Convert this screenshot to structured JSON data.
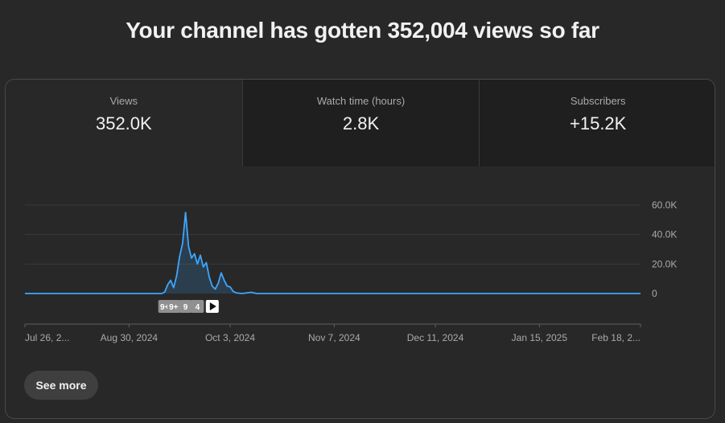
{
  "headline": "Your channel has gotten 352,004 views so far",
  "tabs": [
    {
      "label": "Views",
      "value": "352.0K"
    },
    {
      "label": "Watch time (hours)",
      "value": "2.8K"
    },
    {
      "label": "Subscribers",
      "value": "+15.2K"
    }
  ],
  "see_more_label": "See more",
  "markers": [
    {
      "label": "9+",
      "date": "2024-09-11"
    },
    {
      "label": "9+",
      "date": "2024-09-14"
    },
    {
      "label": "9",
      "date": "2024-09-18"
    },
    {
      "label": "4",
      "date": "2024-09-22"
    },
    {
      "label": "",
      "icon": "play-icon",
      "date": "2024-09-27"
    }
  ],
  "colors": {
    "line": "#3ea6ff",
    "background": "#282828",
    "tab_inactive": "#1f1f1f"
  },
  "chart_data": {
    "type": "area",
    "title": "",
    "xlabel": "",
    "ylabel": "",
    "x_range": [
      "2024-07-26",
      "2025-02-18"
    ],
    "ylim": [
      0,
      60000
    ],
    "y_ticks": [
      0,
      20000,
      40000,
      60000
    ],
    "y_tick_labels": [
      "0",
      "20.0K",
      "40.0K",
      "60.0K"
    ],
    "x_tick_labels": [
      "Jul 26, 2...",
      "Aug 30, 2024",
      "Oct 3, 2024",
      "Nov 7, 2024",
      "Dec 11, 2024",
      "Jan 15, 2025",
      "Feb 18, 2..."
    ],
    "x_tick_dates": [
      "2024-07-26",
      "2024-08-30",
      "2024-10-03",
      "2024-11-07",
      "2024-12-11",
      "2025-01-15",
      "2025-02-18"
    ],
    "grid": true,
    "series": [
      {
        "points": [
          [
            "2024-07-26",
            0
          ],
          [
            "2024-09-10",
            0
          ],
          [
            "2024-09-11",
            1000
          ],
          [
            "2024-09-12",
            6000
          ],
          [
            "2024-09-13",
            9000
          ],
          [
            "2024-09-14",
            4000
          ],
          [
            "2024-09-15",
            12000
          ],
          [
            "2024-09-16",
            25000
          ],
          [
            "2024-09-17",
            34000
          ],
          [
            "2024-09-18",
            55000
          ],
          [
            "2024-09-19",
            32000
          ],
          [
            "2024-09-20",
            24000
          ],
          [
            "2024-09-21",
            27000
          ],
          [
            "2024-09-22",
            20000
          ],
          [
            "2024-09-23",
            26000
          ],
          [
            "2024-09-24",
            18000
          ],
          [
            "2024-09-25",
            21000
          ],
          [
            "2024-09-26",
            11000
          ],
          [
            "2024-09-27",
            5000
          ],
          [
            "2024-09-28",
            3000
          ],
          [
            "2024-09-29",
            7000
          ],
          [
            "2024-09-30",
            14000
          ],
          [
            "2024-10-01",
            9000
          ],
          [
            "2024-10-02",
            5000
          ],
          [
            "2024-10-03",
            4500
          ],
          [
            "2024-10-04",
            1500
          ],
          [
            "2024-10-05",
            500
          ],
          [
            "2024-10-07",
            0
          ],
          [
            "2024-10-10",
            800
          ],
          [
            "2024-10-12",
            0
          ],
          [
            "2025-02-18",
            0
          ]
        ]
      }
    ]
  }
}
